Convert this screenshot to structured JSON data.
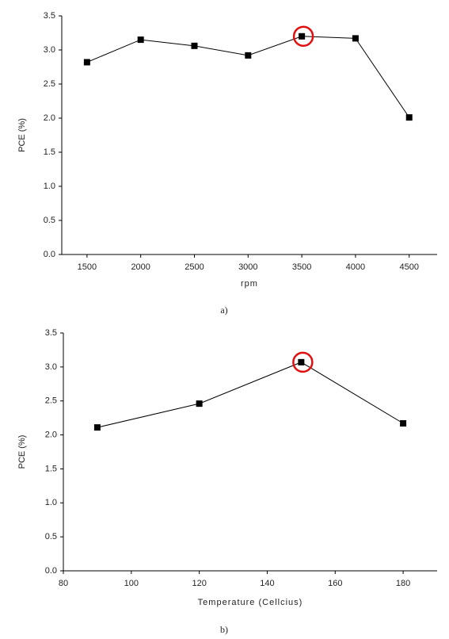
{
  "chart_data": [
    {
      "type": "line",
      "xlabel": "rpm",
      "ylabel": "PCE (%)",
      "caption": "a)",
      "x": [
        1500,
        2000,
        2500,
        3000,
        3500,
        4000,
        4500
      ],
      "values": [
        2.82,
        3.15,
        3.06,
        2.92,
        3.2,
        3.17,
        2.01
      ],
      "color": "#000000",
      "xlim": [
        1265,
        4760
      ],
      "xticks": [
        1500,
        2000,
        2500,
        3000,
        3500,
        4000,
        4500
      ],
      "ylim": [
        0,
        3.5
      ],
      "yticks": [
        {
          "value": 0,
          "label": "0.0"
        },
        0.5,
        {
          "value": 1,
          "label": "1.0"
        },
        1.5,
        {
          "value": 2,
          "label": "2.0"
        },
        2.5,
        {
          "value": 3,
          "label": "3.0"
        },
        3.5
      ],
      "highlight": {
        "x": 3500,
        "color": "#e01010"
      }
    },
    {
      "type": "line",
      "xlabel": "Temperature (Cellcius)",
      "ylabel": "PCE (%)",
      "caption": "b)",
      "x": [
        90,
        120,
        150,
        180
      ],
      "values": [
        2.11,
        2.46,
        3.07,
        2.17
      ],
      "color": "#000000",
      "xlim": [
        80,
        190
      ],
      "xticks": [
        80,
        100,
        120,
        140,
        160,
        180
      ],
      "ylim": [
        0,
        3.5
      ],
      "yticks": [
        {
          "value": 0,
          "label": "0.0"
        },
        0.5,
        {
          "value": 1,
          "label": "1.0"
        },
        1.5,
        {
          "value": 2,
          "label": "2.0"
        },
        2.5,
        {
          "value": 3,
          "label": "3.0"
        },
        3.5
      ],
      "highlight": {
        "x": 150,
        "color": "#e01010"
      }
    }
  ]
}
